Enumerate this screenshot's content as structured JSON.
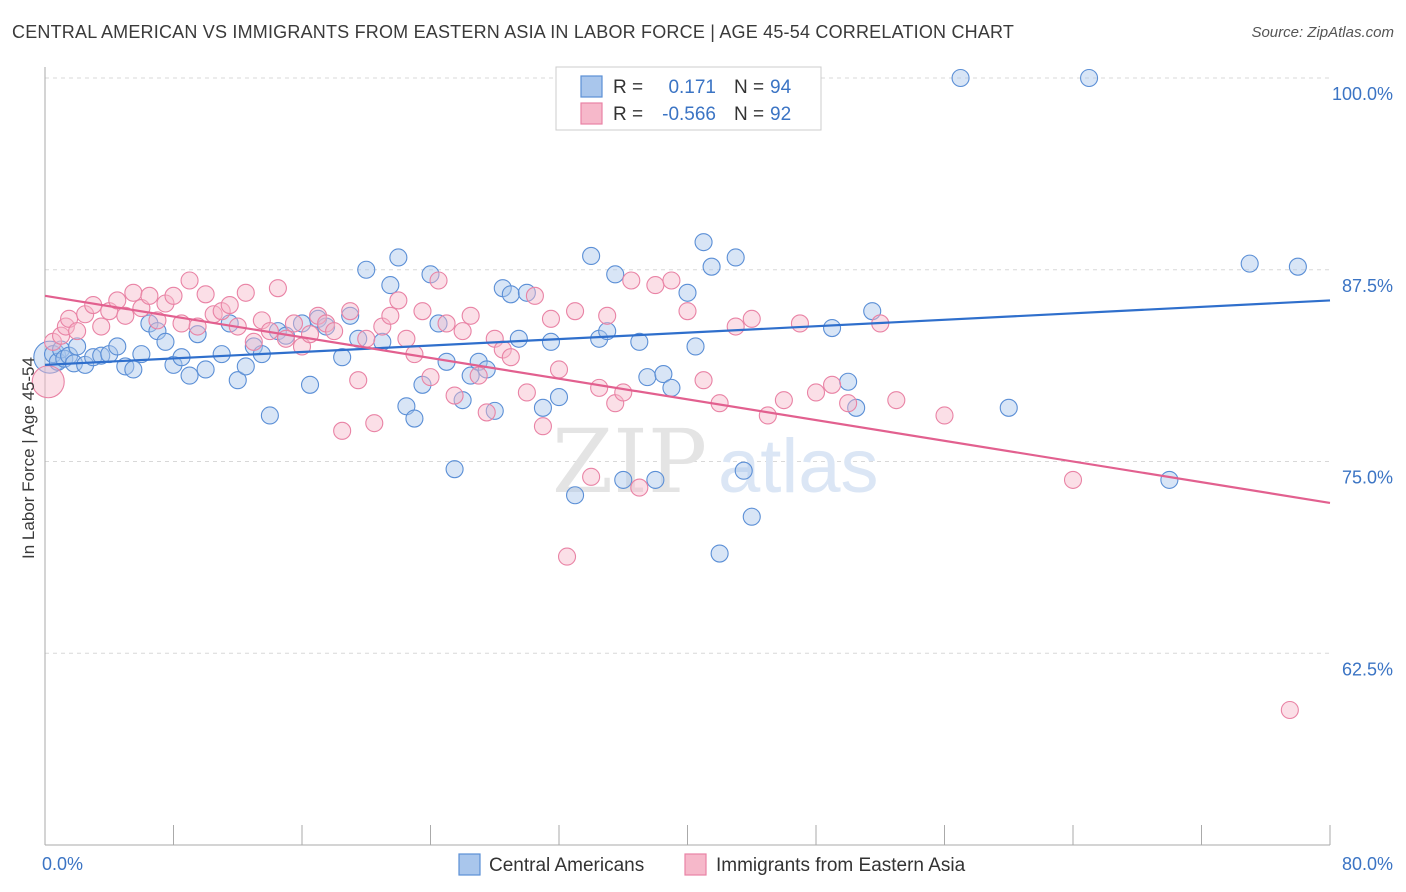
{
  "title": "CENTRAL AMERICAN VS IMMIGRANTS FROM EASTERN ASIA IN LABOR FORCE | AGE 45-54 CORRELATION CHART",
  "source": "Source: ZipAtlas.com",
  "watermark": {
    "zip": "ZIP",
    "atlas": "atlas"
  },
  "colors": {
    "blue_fill": "#a9c6ec",
    "blue_stroke": "#5b8fd6",
    "blue_line": "#2f6fcc",
    "pink_fill": "#f6b8ca",
    "pink_stroke": "#e983a5",
    "pink_line": "#e2608f",
    "tick_text": "#3b74c4",
    "grid": "#d8d8d8"
  },
  "legend": {
    "rows": [
      {
        "r_label": "R =",
        "r_value": "0.171",
        "n_label": "N =",
        "n_value": "94"
      },
      {
        "r_label": "R =",
        "r_value": "-0.566",
        "n_label": "N =",
        "n_value": "92"
      }
    ]
  },
  "chart_data": {
    "type": "scatter",
    "xlabel": "",
    "ylabel": "In Labor Force | Age 45-54",
    "xlim": [
      0,
      80
    ],
    "ylim": [
      50,
      101.5
    ],
    "x_tick_labels": [
      "0.0%",
      "80.0%"
    ],
    "y_ticks": [
      62.5,
      75.0,
      87.5,
      100.0
    ],
    "y_tick_labels": [
      "62.5%",
      "75.0%",
      "87.5%",
      "100.0%"
    ],
    "grid": true,
    "legend_position": "top-center",
    "series": [
      {
        "name": "Central Americans",
        "color": "#5b8fd6",
        "trend": {
          "x": [
            0,
            80
          ],
          "y": [
            81.3,
            85.5
          ]
        },
        "points": [
          [
            0.3,
            81.8
          ],
          [
            0.5,
            82.0
          ],
          [
            0.8,
            81.5
          ],
          [
            1.0,
            82.3
          ],
          [
            1.2,
            81.7
          ],
          [
            1.5,
            81.9
          ],
          [
            1.8,
            81.4
          ],
          [
            2.0,
            82.5
          ],
          [
            2.5,
            81.3
          ],
          [
            3.0,
            81.8
          ],
          [
            3.5,
            81.9
          ],
          [
            4.0,
            82.0
          ],
          [
            4.5,
            82.5
          ],
          [
            5.0,
            81.2
          ],
          [
            5.5,
            81.0
          ],
          [
            6.0,
            82.0
          ],
          [
            6.5,
            84.0
          ],
          [
            7.0,
            83.5
          ],
          [
            7.5,
            82.8
          ],
          [
            8.0,
            81.3
          ],
          [
            8.5,
            81.8
          ],
          [
            9.0,
            80.6
          ],
          [
            9.5,
            83.3
          ],
          [
            10.0,
            81.0
          ],
          [
            11.0,
            82.0
          ],
          [
            11.5,
            84.0
          ],
          [
            12.0,
            80.3
          ],
          [
            12.5,
            81.2
          ],
          [
            13.0,
            82.5
          ],
          [
            13.5,
            82.0
          ],
          [
            14.0,
            78.0
          ],
          [
            14.5,
            83.5
          ],
          [
            15.0,
            83.2
          ],
          [
            16.0,
            84.0
          ],
          [
            16.5,
            80.0
          ],
          [
            17.0,
            84.3
          ],
          [
            17.5,
            83.8
          ],
          [
            18.5,
            81.8
          ],
          [
            19.0,
            84.5
          ],
          [
            19.5,
            83.0
          ],
          [
            20.0,
            87.5
          ],
          [
            21.0,
            82.8
          ],
          [
            21.5,
            86.5
          ],
          [
            22.0,
            88.3
          ],
          [
            22.5,
            78.6
          ],
          [
            23.0,
            77.8
          ],
          [
            23.5,
            80.0
          ],
          [
            24.0,
            87.2
          ],
          [
            24.5,
            84.0
          ],
          [
            25.0,
            81.5
          ],
          [
            25.5,
            74.5
          ],
          [
            26.0,
            79.0
          ],
          [
            26.5,
            80.6
          ],
          [
            27.0,
            81.5
          ],
          [
            27.5,
            81.0
          ],
          [
            28.0,
            78.3
          ],
          [
            28.5,
            86.3
          ],
          [
            29.0,
            85.9
          ],
          [
            29.5,
            83.0
          ],
          [
            30.0,
            86.0
          ],
          [
            31.0,
            78.5
          ],
          [
            31.5,
            82.8
          ],
          [
            32.0,
            79.2
          ],
          [
            33.0,
            72.8
          ],
          [
            34.0,
            88.4
          ],
          [
            34.5,
            83.0
          ],
          [
            35.0,
            83.5
          ],
          [
            35.5,
            87.2
          ],
          [
            36.0,
            73.8
          ],
          [
            37.0,
            82.8
          ],
          [
            37.5,
            80.5
          ],
          [
            38.0,
            73.8
          ],
          [
            38.5,
            80.7
          ],
          [
            39.0,
            79.8
          ],
          [
            40.0,
            86.0
          ],
          [
            40.5,
            82.5
          ],
          [
            41.0,
            89.3
          ],
          [
            41.5,
            87.7
          ],
          [
            42.0,
            69.0
          ],
          [
            43.0,
            88.3
          ],
          [
            43.5,
            74.4
          ],
          [
            44.0,
            71.4
          ],
          [
            49.0,
            83.7
          ],
          [
            50.0,
            80.2
          ],
          [
            50.5,
            78.5
          ],
          [
            51.5,
            84.8
          ],
          [
            57.0,
            100.0
          ],
          [
            60.0,
            78.5
          ],
          [
            65.0,
            100.0
          ],
          [
            70.0,
            73.8
          ],
          [
            75.0,
            87.9
          ],
          [
            78.0,
            87.7
          ],
          [
            43.0,
            100.0
          ],
          [
            45.0,
            100.0
          ]
        ]
      },
      {
        "name": "Immigrants from Eastern Asia",
        "color": "#e983a5",
        "trend": {
          "x": [
            0,
            80
          ],
          "y": [
            85.8,
            72.3
          ]
        },
        "points": [
          [
            0.2,
            80.2
          ],
          [
            0.5,
            82.8
          ],
          [
            1.0,
            83.2
          ],
          [
            1.3,
            83.8
          ],
          [
            1.5,
            84.3
          ],
          [
            2.0,
            83.5
          ],
          [
            2.5,
            84.6
          ],
          [
            3.0,
            85.2
          ],
          [
            3.5,
            83.8
          ],
          [
            4.0,
            84.8
          ],
          [
            4.5,
            85.5
          ],
          [
            5.0,
            84.5
          ],
          [
            5.5,
            86.0
          ],
          [
            6.0,
            85.0
          ],
          [
            6.5,
            85.8
          ],
          [
            7.0,
            84.2
          ],
          [
            7.5,
            85.3
          ],
          [
            8.0,
            85.8
          ],
          [
            8.5,
            84.0
          ],
          [
            9.0,
            86.8
          ],
          [
            9.5,
            83.8
          ],
          [
            10.0,
            85.9
          ],
          [
            10.5,
            84.6
          ],
          [
            11.0,
            84.8
          ],
          [
            11.5,
            85.2
          ],
          [
            12.0,
            83.8
          ],
          [
            12.5,
            86.0
          ],
          [
            13.0,
            82.8
          ],
          [
            13.5,
            84.2
          ],
          [
            14.0,
            83.5
          ],
          [
            14.5,
            86.3
          ],
          [
            15.0,
            83.0
          ],
          [
            15.5,
            84.0
          ],
          [
            16.0,
            82.5
          ],
          [
            16.5,
            83.3
          ],
          [
            17.0,
            84.5
          ],
          [
            17.5,
            84.0
          ],
          [
            18.0,
            83.5
          ],
          [
            18.5,
            77.0
          ],
          [
            19.0,
            84.8
          ],
          [
            19.5,
            80.3
          ],
          [
            20.0,
            83.0
          ],
          [
            20.5,
            77.5
          ],
          [
            21.0,
            83.8
          ],
          [
            21.5,
            84.5
          ],
          [
            22.0,
            85.5
          ],
          [
            22.5,
            83.0
          ],
          [
            23.0,
            82.0
          ],
          [
            23.5,
            84.8
          ],
          [
            24.0,
            80.5
          ],
          [
            24.5,
            86.8
          ],
          [
            25.0,
            84.0
          ],
          [
            25.5,
            79.3
          ],
          [
            26.0,
            83.5
          ],
          [
            26.5,
            84.5
          ],
          [
            27.0,
            80.6
          ],
          [
            27.5,
            78.2
          ],
          [
            28.0,
            83.0
          ],
          [
            28.5,
            82.3
          ],
          [
            29.0,
            81.8
          ],
          [
            30.0,
            79.5
          ],
          [
            30.5,
            85.8
          ],
          [
            31.0,
            77.3
          ],
          [
            31.5,
            84.3
          ],
          [
            32.0,
            81.0
          ],
          [
            32.5,
            68.8
          ],
          [
            33.0,
            84.8
          ],
          [
            34.0,
            74.0
          ],
          [
            34.5,
            79.8
          ],
          [
            35.0,
            84.5
          ],
          [
            35.5,
            78.8
          ],
          [
            36.0,
            79.5
          ],
          [
            36.5,
            86.8
          ],
          [
            37.0,
            73.3
          ],
          [
            38.0,
            86.5
          ],
          [
            39.0,
            86.8
          ],
          [
            40.0,
            84.8
          ],
          [
            41.0,
            80.3
          ],
          [
            42.0,
            78.8
          ],
          [
            43.0,
            83.8
          ],
          [
            44.0,
            84.3
          ],
          [
            45.0,
            78.0
          ],
          [
            46.0,
            79.0
          ],
          [
            47.0,
            84.0
          ],
          [
            48.0,
            79.5
          ],
          [
            49.0,
            80.0
          ],
          [
            50.0,
            78.8
          ],
          [
            52.0,
            84.0
          ],
          [
            53.0,
            79.0
          ],
          [
            56.0,
            78.0
          ],
          [
            64.0,
            73.8
          ],
          [
            77.5,
            58.8
          ]
        ]
      }
    ]
  },
  "bottom_legend": {
    "items": [
      {
        "label": "Central Americans"
      },
      {
        "label": "Immigrants from Eastern Asia"
      }
    ]
  }
}
